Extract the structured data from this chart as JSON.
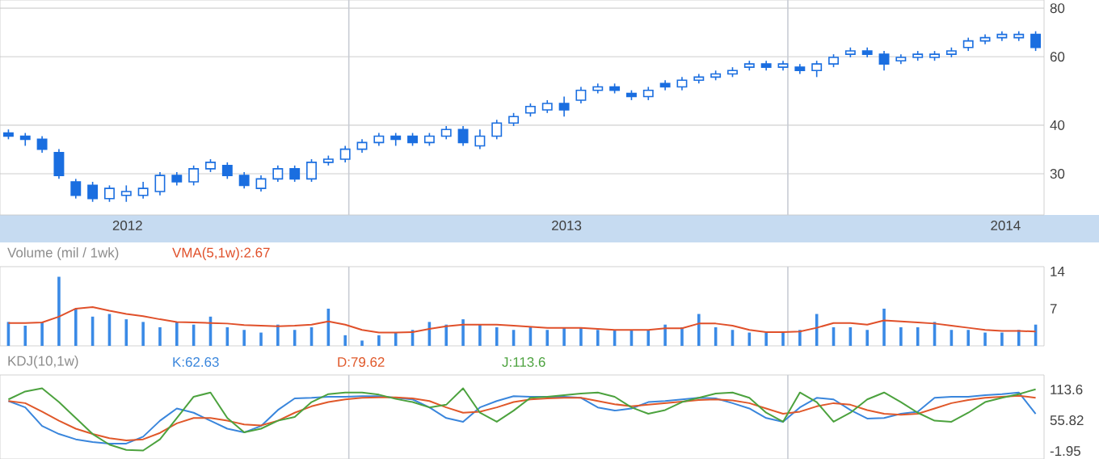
{
  "chart_data": [
    {
      "type": "candlestick",
      "color": "#1a6ee0",
      "log": true,
      "grid": "y",
      "x": [
        "2012-03-24",
        "2012-04-07",
        "2012-04-21",
        "2012-05-05",
        "2012-05-19",
        "2012-06-02",
        "2012-06-16",
        "2012-06-30",
        "2012-07-14",
        "2012-07-28",
        "2012-08-11",
        "2012-08-25",
        "2012-09-08",
        "2012-09-22",
        "2012-10-06",
        "2012-10-20",
        "2012-11-03",
        "2012-11-17",
        "2012-12-01",
        "2012-12-15",
        "2012-12-29",
        "2013-01-12",
        "2013-01-26",
        "2013-02-09",
        "2013-02-23",
        "2013-03-09",
        "2013-03-23",
        "2013-04-06",
        "2013-04-20",
        "2013-05-04",
        "2013-05-18",
        "2013-06-01",
        "2013-06-15",
        "2013-06-29",
        "2013-07-13",
        "2013-07-27",
        "2013-08-10",
        "2013-08-24",
        "2013-09-07",
        "2013-09-21",
        "2013-10-05",
        "2013-10-19",
        "2013-11-02",
        "2013-11-16",
        "2013-11-30",
        "2013-12-14",
        "2013-12-28",
        "2014-01-11",
        "2014-01-25",
        "2014-02-08",
        "2014-02-22",
        "2014-03-08",
        "2014-03-22",
        "2014-04-05",
        "2014-04-19",
        "2014-05-03",
        "2014-05-17",
        "2014-05-31",
        "2014-06-14",
        "2014-06-28",
        "2014-07-12",
        "2014-07-26"
      ],
      "ohlc": [
        [
          38.2,
          39.0,
          36.8,
          37.5
        ],
        [
          37.5,
          38.2,
          35.4,
          36.8
        ],
        [
          36.8,
          37.5,
          34.0,
          34.7
        ],
        [
          34.0,
          34.7,
          29.1,
          29.7
        ],
        [
          28.6,
          29.1,
          25.9,
          26.4
        ],
        [
          28.0,
          28.6,
          25.4,
          25.9
        ],
        [
          25.9,
          28.0,
          25.4,
          27.5
        ],
        [
          26.4,
          28.0,
          25.4,
          27.0
        ],
        [
          26.4,
          28.6,
          25.9,
          27.5
        ],
        [
          27.0,
          30.3,
          26.4,
          29.7
        ],
        [
          29.7,
          30.3,
          28.0,
          28.6
        ],
        [
          28.6,
          31.5,
          28.0,
          30.9
        ],
        [
          30.9,
          32.7,
          30.3,
          32.1
        ],
        [
          31.5,
          32.1,
          29.1,
          29.7
        ],
        [
          29.7,
          30.3,
          27.5,
          28.0
        ],
        [
          27.5,
          29.7,
          27.0,
          29.1
        ],
        [
          29.1,
          31.5,
          28.6,
          30.9
        ],
        [
          30.9,
          31.5,
          28.6,
          29.1
        ],
        [
          29.1,
          32.7,
          28.6,
          32.1
        ],
        [
          32.1,
          33.4,
          31.5,
          32.7
        ],
        [
          32.7,
          35.4,
          32.1,
          34.7
        ],
        [
          34.7,
          36.8,
          34.0,
          36.1
        ],
        [
          36.1,
          38.2,
          35.4,
          37.5
        ],
        [
          37.5,
          38.2,
          35.4,
          36.8
        ],
        [
          37.5,
          38.2,
          35.4,
          36.1
        ],
        [
          36.1,
          38.2,
          35.4,
          37.5
        ],
        [
          37.5,
          39.8,
          36.8,
          39.0
        ],
        [
          39.0,
          39.8,
          35.4,
          36.1
        ],
        [
          35.4,
          39.0,
          34.7,
          37.5
        ],
        [
          37.5,
          41.3,
          36.8,
          40.5
        ],
        [
          40.5,
          43.0,
          39.8,
          42.1
        ],
        [
          43.0,
          45.5,
          42.1,
          44.7
        ],
        [
          43.8,
          46.4,
          43.0,
          45.5
        ],
        [
          45.5,
          47.4,
          42.1,
          43.8
        ],
        [
          46.4,
          50.2,
          45.5,
          49.2
        ],
        [
          49.2,
          51.2,
          48.3,
          50.2
        ],
        [
          50.2,
          51.2,
          48.3,
          49.2
        ],
        [
          48.3,
          49.2,
          46.4,
          47.4
        ],
        [
          47.4,
          50.2,
          46.4,
          49.2
        ],
        [
          51.2,
          52.2,
          49.2,
          50.2
        ],
        [
          50.2,
          53.2,
          49.2,
          52.2
        ],
        [
          52.2,
          54.2,
          51.2,
          53.2
        ],
        [
          53.2,
          55.3,
          52.2,
          54.2
        ],
        [
          54.2,
          56.4,
          53.2,
          55.3
        ],
        [
          56.4,
          58.6,
          55.3,
          57.5
        ],
        [
          57.5,
          58.6,
          55.3,
          56.4
        ],
        [
          56.4,
          58.6,
          55.3,
          57.5
        ],
        [
          56.4,
          57.5,
          54.2,
          55.3
        ],
        [
          55.3,
          58.6,
          53.2,
          57.5
        ],
        [
          57.5,
          60.9,
          56.4,
          59.8
        ],
        [
          60.9,
          63.4,
          59.8,
          62.1
        ],
        [
          62.1,
          63.4,
          59.8,
          60.9
        ],
        [
          60.9,
          62.1,
          55.3,
          57.5
        ],
        [
          58.6,
          60.9,
          57.5,
          59.8
        ],
        [
          59.8,
          62.1,
          58.6,
          60.9
        ],
        [
          59.8,
          62.1,
          58.6,
          60.9
        ],
        [
          60.9,
          63.4,
          59.8,
          62.1
        ],
        [
          63.4,
          67.2,
          62.1,
          65.9
        ],
        [
          65.9,
          68.5,
          64.6,
          67.2
        ],
        [
          67.2,
          69.8,
          65.9,
          68.5
        ],
        [
          67.2,
          69.8,
          65.9,
          68.5
        ],
        [
          68.5,
          69.8,
          62.1,
          63.4
        ]
      ],
      "xlim": [
        "2012-03-17",
        "2014-08-02"
      ],
      "xticks": [
        {
          "value": "2012-07-01",
          "label": "2012"
        },
        {
          "value": "2013-07-01",
          "label": "2013"
        },
        {
          "value": "2014-07-01",
          "label": "2014"
        }
      ],
      "ylim": [
        23.5,
        84
      ],
      "yticks": [
        30,
        40,
        60,
        80
      ],
      "ref_lines": [
        {
          "axis": "x",
          "value": "2013-01-01",
          "color": "#c8ccd4"
        },
        {
          "axis": "x",
          "value": "2014-01-01",
          "color": "#c8ccd4"
        }
      ]
    },
    {
      "type": "bar",
      "title": "Volume (mil / 1wk)",
      "legend": "top",
      "tick_labels": "y",
      "x": [
        "2012-03-24",
        "2012-04-07",
        "2012-04-21",
        "2012-05-05",
        "2012-05-19",
        "2012-06-02",
        "2012-06-16",
        "2012-06-30",
        "2012-07-14",
        "2012-07-28",
        "2012-08-11",
        "2012-08-25",
        "2012-09-08",
        "2012-09-22",
        "2012-10-06",
        "2012-10-20",
        "2012-11-03",
        "2012-11-17",
        "2012-12-01",
        "2012-12-15",
        "2012-12-29",
        "2013-01-12",
        "2013-01-26",
        "2013-02-09",
        "2013-02-23",
        "2013-03-09",
        "2013-03-23",
        "2013-04-06",
        "2013-04-20",
        "2013-05-04",
        "2013-05-18",
        "2013-06-01",
        "2013-06-15",
        "2013-06-29",
        "2013-07-13",
        "2013-07-27",
        "2013-08-10",
        "2013-08-24",
        "2013-09-07",
        "2013-09-21",
        "2013-10-05",
        "2013-10-19",
        "2013-11-02",
        "2013-11-16",
        "2013-11-30",
        "2013-12-14",
        "2013-12-28",
        "2014-01-11",
        "2014-01-25",
        "2014-02-08",
        "2014-02-22",
        "2014-03-08",
        "2014-03-22",
        "2014-04-05",
        "2014-04-19",
        "2014-05-03",
        "2014-05-17",
        "2014-05-31",
        "2014-06-14",
        "2014-06-28",
        "2014-07-12",
        "2014-07-26"
      ],
      "series": [
        {
          "color": "#3a8ae6",
          "values": [
            4.5,
            3.8,
            4.5,
            13,
            7,
            5.5,
            6,
            5,
            4.5,
            3.5,
            4.5,
            4,
            5.5,
            3.5,
            3,
            2.5,
            4,
            3,
            3.5,
            7,
            2,
            1,
            2,
            2.5,
            3,
            4.5,
            4,
            5,
            4,
            3.5,
            3,
            3.5,
            3,
            3.5,
            3.5,
            3,
            3,
            3,
            3,
            4,
            3.5,
            6,
            3.5,
            3,
            2.5,
            2.5,
            2.5,
            3,
            6,
            3.5,
            3.5,
            3,
            7,
            3.5,
            3.5,
            4.5,
            3,
            3,
            2.5,
            2.5,
            3,
            4
          ]
        },
        {
          "type": "line",
          "name": "VMA(5,1w):2.67",
          "color": "#e0502a",
          "values": [
            4.3,
            4.3,
            4.4,
            5.5,
            7.0,
            7.3,
            6.6,
            6.0,
            5.6,
            5.0,
            4.5,
            4.4,
            4.3,
            4.2,
            3.9,
            3.8,
            3.7,
            3.8,
            4.0,
            4.6,
            4.0,
            3.0,
            2.5,
            2.5,
            2.6,
            3.2,
            3.7,
            4.0,
            4.0,
            4.0,
            3.8,
            3.6,
            3.4,
            3.4,
            3.4,
            3.2,
            3.0,
            3.0,
            3.0,
            3.3,
            3.3,
            4.2,
            4.2,
            3.8,
            3.0,
            2.6,
            2.6,
            2.7,
            3.4,
            4.3,
            4.3,
            4.0,
            4.8,
            4.6,
            4.4,
            4.2,
            3.8,
            3.4,
            3.0,
            2.8,
            2.8,
            2.7
          ]
        }
      ],
      "xlim": [
        "2012-03-17",
        "2014-08-02"
      ],
      "ylim": [
        0,
        14.9
      ],
      "yticks": [
        7,
        14
      ],
      "ref_lines": [
        {
          "axis": "x",
          "value": "2013-01-01",
          "color": "#c8ccd4"
        },
        {
          "axis": "x",
          "value": "2014-01-01",
          "color": "#c8ccd4"
        }
      ]
    },
    {
      "type": "line",
      "title": "KDJ(10,1w)",
      "legend": "top",
      "tick_labels": "y",
      "x": [
        "2012-03-24",
        "2012-04-07",
        "2012-04-21",
        "2012-05-05",
        "2012-05-19",
        "2012-06-02",
        "2012-06-16",
        "2012-06-30",
        "2012-07-14",
        "2012-07-28",
        "2012-08-11",
        "2012-08-25",
        "2012-09-08",
        "2012-09-22",
        "2012-10-06",
        "2012-10-20",
        "2012-11-03",
        "2012-11-17",
        "2012-12-01",
        "2012-12-15",
        "2012-12-29",
        "2013-01-12",
        "2013-01-26",
        "2013-02-09",
        "2013-02-23",
        "2013-03-09",
        "2013-03-23",
        "2013-04-06",
        "2013-04-20",
        "2013-05-04",
        "2013-05-18",
        "2013-06-01",
        "2013-06-15",
        "2013-06-29",
        "2013-07-13",
        "2013-07-27",
        "2013-08-10",
        "2013-08-24",
        "2013-09-07",
        "2013-09-21",
        "2013-10-05",
        "2013-10-19",
        "2013-11-02",
        "2013-11-16",
        "2013-11-30",
        "2013-12-14",
        "2013-12-28",
        "2014-01-11",
        "2014-01-25",
        "2014-02-08",
        "2014-02-22",
        "2014-03-08",
        "2014-03-22",
        "2014-04-05",
        "2014-04-19",
        "2014-05-03",
        "2014-05-17",
        "2014-05-31",
        "2014-06-14",
        "2014-06-28",
        "2014-07-12",
        "2014-07-26"
      ],
      "series": [
        {
          "name": "K:62.63",
          "color": "#3a86dc",
          "values": [
            92,
            80,
            45,
            30,
            20,
            15,
            12,
            12,
            25,
            55,
            78,
            70,
            55,
            40,
            33,
            45,
            75,
            97,
            98,
            100,
            100,
            101,
            101,
            98,
            95,
            80,
            60,
            53,
            80,
            92,
            101,
            100,
            100,
            100,
            98,
            80,
            74,
            78,
            90,
            92,
            95,
            98,
            97,
            88,
            78,
            60,
            53,
            80,
            98,
            95,
            75,
            59,
            60,
            68,
            72,
            98,
            100,
            100,
            103,
            105,
            108,
            68
          ]
        },
        {
          "name": "D:79.62",
          "color": "#e0582a",
          "values": [
            92,
            88,
            72,
            55,
            40,
            30,
            22,
            18,
            20,
            32,
            50,
            60,
            60,
            55,
            48,
            46,
            55,
            70,
            82,
            90,
            95,
            98,
            99,
            99,
            97,
            92,
            80,
            70,
            72,
            80,
            90,
            95,
            97,
            98,
            98,
            92,
            86,
            82,
            85,
            88,
            91,
            94,
            95,
            93,
            88,
            78,
            68,
            72,
            82,
            88,
            85,
            75,
            68,
            66,
            68,
            78,
            88,
            94,
            98,
            100,
            102,
            98
          ]
        },
        {
          "name": "J:113.6",
          "color": "#4ca23e",
          "values": [
            95,
            110,
            116,
            90,
            60,
            30,
            10,
            0,
            -1,
            20,
            60,
            100,
            108,
            60,
            33,
            40,
            55,
            62,
            90,
            105,
            108,
            108,
            104,
            96,
            90,
            80,
            85,
            116,
            70,
            53,
            74,
            98,
            100,
            103,
            106,
            108,
            100,
            80,
            68,
            75,
            90,
            98,
            106,
            108,
            98,
            70,
            53,
            108,
            90,
            53,
            70,
            95,
            108,
            90,
            70,
            55,
            53,
            70,
            90,
            98,
            105,
            114
          ]
        }
      ],
      "xlim": [
        "2012-03-17",
        "2014-08-02"
      ],
      "ylim": [
        -17,
        141
      ],
      "yticks": [
        -1.95,
        55.82,
        113.6
      ],
      "ref_lines": [
        {
          "axis": "x",
          "value": "2013-01-01",
          "color": "#c8ccd4"
        },
        {
          "axis": "x",
          "value": "2014-01-01",
          "color": "#c8ccd4"
        }
      ]
    }
  ]
}
